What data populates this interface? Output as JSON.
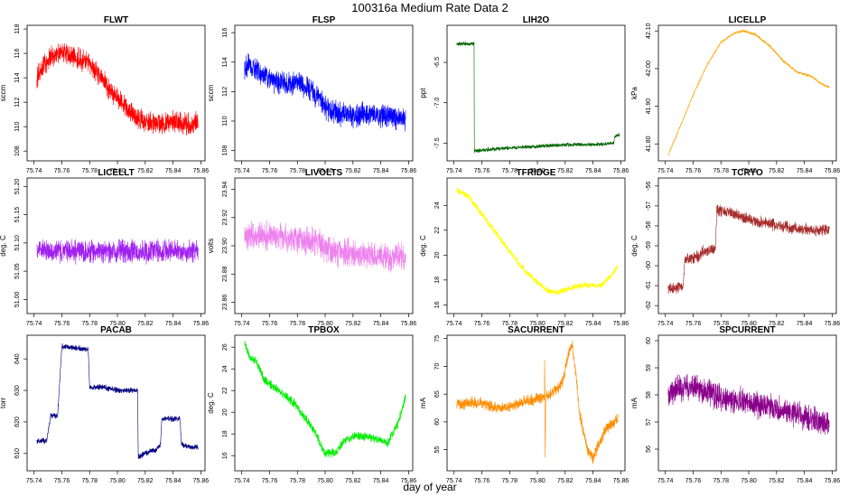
{
  "figure": {
    "title": "100316a   Medium Rate Data 2",
    "xlabel": "day of year"
  },
  "chart_data": [
    {
      "type": "line",
      "title": "FLWT",
      "ylabel": "sccm",
      "color": "#ff0000",
      "xlim": [
        75.735,
        75.863
      ],
      "ylim": [
        107.2,
        118.3
      ],
      "xticks": [
        75.74,
        75.76,
        75.78,
        75.8,
        75.82,
        75.84,
        75.86
      ],
      "yticks": [
        108,
        110,
        112,
        114,
        116,
        118
      ],
      "ytick_labels": [
        "108",
        "110",
        "112",
        "114",
        "116",
        "118"
      ],
      "series": [
        {
          "name": "FLWT",
          "x": [
            75.742,
            75.748,
            75.755,
            75.762,
            75.77,
            75.778,
            75.785,
            75.792,
            75.8,
            75.808,
            75.815,
            75.822,
            75.83,
            75.838,
            75.845,
            75.852,
            75.858
          ],
          "y": [
            114.0,
            115.3,
            115.8,
            116.0,
            115.6,
            115.3,
            114.5,
            113.4,
            112.4,
            111.3,
            110.7,
            110.3,
            110.3,
            110.4,
            110.3,
            110.1,
            110.4
          ],
          "noise": 1.1
        }
      ]
    },
    {
      "type": "line",
      "title": "FLSP",
      "ylabel": "sccm",
      "color": "#0000ff",
      "xlim": [
        75.735,
        75.863
      ],
      "ylim": [
        107.3,
        116.5
      ],
      "xticks": [
        75.74,
        75.76,
        75.78,
        75.8,
        75.82,
        75.84,
        75.86
      ],
      "yticks": [
        108,
        110,
        112,
        114,
        116
      ],
      "ytick_labels": [
        "108",
        "110",
        "112",
        "114",
        "116"
      ],
      "series": [
        {
          "name": "FLSP",
          "x": [
            75.742,
            75.75,
            75.758,
            75.765,
            75.772,
            75.78,
            75.788,
            75.795,
            75.8,
            75.808,
            75.815,
            75.822,
            75.83,
            75.838,
            75.845,
            75.852,
            75.858
          ],
          "y": [
            113.8,
            113.5,
            113.0,
            112.6,
            112.5,
            112.6,
            112.3,
            111.6,
            111.0,
            110.6,
            110.4,
            110.4,
            110.5,
            110.4,
            110.3,
            110.2,
            110.2
          ],
          "noise": 1.0
        }
      ]
    },
    {
      "type": "line",
      "title": "LIH2O",
      "ylabel": "ppt",
      "color": "#006400",
      "xlim": [
        75.735,
        75.863
      ],
      "ylim": [
        -7.72,
        -6.04
      ],
      "xticks": [
        75.74,
        75.76,
        75.78,
        75.8,
        75.82,
        75.84,
        75.86
      ],
      "yticks": [
        -7.5,
        -7.0,
        -6.5
      ],
      "ytick_labels": [
        "-7.5",
        "-7.0",
        "-6.5"
      ],
      "series": [
        {
          "name": "LIH2O",
          "x": [
            75.742,
            75.7545,
            75.7546,
            75.765,
            75.78,
            75.8,
            75.82,
            75.84,
            75.855,
            75.8556,
            75.859
          ],
          "y": [
            -6.27,
            -6.27,
            -7.6,
            -7.58,
            -7.56,
            -7.54,
            -7.52,
            -7.52,
            -7.5,
            -7.42,
            -7.4
          ],
          "noise": 0.03
        }
      ]
    },
    {
      "type": "line",
      "title": "LICELLP",
      "ylabel": "kPa",
      "color": "#ffa500",
      "xlim": [
        75.735,
        75.863
      ],
      "ylim": [
        41.755,
        42.115
      ],
      "xticks": [
        75.74,
        75.76,
        75.78,
        75.8,
        75.82,
        75.84,
        75.86
      ],
      "yticks": [
        41.8,
        41.9,
        42.0,
        42.1
      ],
      "ytick_labels": [
        "41.80",
        "41.90",
        "42.00",
        "42.10"
      ],
      "series": [
        {
          "name": "LICELLP",
          "x": [
            75.742,
            75.75,
            75.76,
            75.77,
            75.78,
            75.79,
            75.797,
            75.805,
            75.815,
            75.825,
            75.835,
            75.845,
            75.852,
            75.858
          ],
          "y": [
            41.77,
            41.84,
            41.93,
            42.01,
            42.07,
            42.095,
            42.1,
            42.09,
            42.06,
            42.02,
            41.99,
            41.98,
            41.96,
            41.95
          ],
          "noise": 0.004
        }
      ]
    },
    {
      "type": "line",
      "title": "LICELLT",
      "ylabel": "deg. C",
      "color": "#a020f0",
      "xlim": [
        75.735,
        75.863
      ],
      "ylim": [
        50.975,
        51.215
      ],
      "xticks": [
        75.74,
        75.76,
        75.78,
        75.8,
        75.82,
        75.84,
        75.86
      ],
      "yticks": [
        51.0,
        51.05,
        51.1,
        51.15,
        51.2
      ],
      "ytick_labels": [
        "51.00",
        "51.05",
        "51.10",
        "51.15",
        "51.20"
      ],
      "series": [
        {
          "name": "LICELLT",
          "x": [
            75.742,
            75.8,
            75.858
          ],
          "y": [
            51.085,
            51.085,
            51.085
          ],
          "noise": 0.024
        }
      ]
    },
    {
      "type": "line",
      "title": "LIVOLTS",
      "ylabel": "volts",
      "color": "#ee82ee",
      "xlim": [
        75.735,
        75.863
      ],
      "ylim": [
        23.852,
        23.948
      ],
      "xticks": [
        75.74,
        75.76,
        75.78,
        75.8,
        75.82,
        75.84,
        75.86
      ],
      "yticks": [
        23.86,
        23.88,
        23.9,
        23.92,
        23.94
      ],
      "ytick_labels": [
        "23.86",
        "23.88",
        "23.90",
        "23.92",
        "23.94"
      ],
      "series": [
        {
          "name": "LIVOLTS",
          "x": [
            75.742,
            75.76,
            75.78,
            75.795,
            75.802,
            75.815,
            75.83,
            75.845,
            75.858
          ],
          "y": [
            23.907,
            23.907,
            23.905,
            23.902,
            23.897,
            23.895,
            23.893,
            23.892,
            23.892
          ],
          "noise": 0.012
        }
      ]
    },
    {
      "type": "line",
      "title": "TFRIDGE",
      "ylabel": "deg. C",
      "color": "#ffff00",
      "xlim": [
        75.735,
        75.863
      ],
      "ylim": [
        15.3,
        26.2
      ],
      "xticks": [
        75.74,
        75.76,
        75.78,
        75.8,
        75.82,
        75.84,
        75.86
      ],
      "yticks": [
        16,
        18,
        20,
        22,
        24
      ],
      "ytick_labels": [
        "16",
        "18",
        "20",
        "22",
        "24"
      ],
      "series": [
        {
          "name": "TFRIDGE",
          "x": [
            75.742,
            75.75,
            75.76,
            75.77,
            75.78,
            75.79,
            75.8,
            75.808,
            75.815,
            75.825,
            75.835,
            75.845,
            75.852,
            75.858
          ],
          "y": [
            25.2,
            24.8,
            23.3,
            21.8,
            20.3,
            18.9,
            17.8,
            17.1,
            17.0,
            17.4,
            17.6,
            17.5,
            18.2,
            19.2
          ],
          "noise": 0.3
        }
      ]
    },
    {
      "type": "line",
      "title": "TCRYO",
      "ylabel": "deg. C",
      "color": "#a52a2a",
      "xlim": [
        75.735,
        75.863
      ],
      "ylim": [
        -62.4,
        -55.6
      ],
      "xticks": [
        75.74,
        75.76,
        75.78,
        75.8,
        75.82,
        75.84,
        75.86
      ],
      "yticks": [
        -62,
        -61,
        -60,
        -59,
        -58,
        -57,
        -56
      ],
      "ytick_labels": [
        "-62",
        "-61",
        "-60",
        "-59",
        "-58",
        "-57",
        "-56"
      ],
      "series": [
        {
          "name": "TCRYO",
          "x": [
            75.742,
            75.753,
            75.754,
            75.765,
            75.766,
            75.776,
            75.777,
            75.79,
            75.8,
            75.815,
            75.83,
            75.845,
            75.858
          ],
          "y": [
            -61.2,
            -61.0,
            -59.7,
            -59.5,
            -59.3,
            -59.2,
            -57.2,
            -57.4,
            -57.7,
            -57.9,
            -58.1,
            -58.2,
            -58.2
          ],
          "noise": 0.35
        }
      ]
    },
    {
      "type": "line",
      "title": "PACAB",
      "ylabel": "torr",
      "color": "#000080",
      "xlim": [
        75.735,
        75.863
      ],
      "ylim": [
        604.5,
        647.5
      ],
      "xticks": [
        75.74,
        75.76,
        75.78,
        75.8,
        75.82,
        75.84,
        75.86
      ],
      "yticks": [
        610,
        620,
        630,
        640
      ],
      "ytick_labels": [
        "610",
        "620",
        "630",
        "640"
      ],
      "series": [
        {
          "name": "PACAB",
          "x": [
            75.742,
            75.749,
            75.752,
            75.755,
            75.757,
            75.76,
            75.779,
            75.78,
            75.79,
            75.8,
            75.8145,
            75.815,
            75.825,
            75.828,
            75.831,
            75.832,
            75.845,
            75.846,
            75.852,
            75.858
          ],
          "y": [
            614,
            614,
            622,
            622,
            622,
            644,
            643,
            631,
            631,
            630,
            630,
            609,
            611,
            611,
            613,
            621,
            621,
            613,
            612,
            612
          ],
          "noise": 1.1
        }
      ]
    },
    {
      "type": "line",
      "title": "TPBOX",
      "ylabel": "deg. C",
      "color": "#00ee00",
      "xlim": [
        75.735,
        75.863
      ],
      "ylim": [
        14.6,
        27.1
      ],
      "xticks": [
        75.74,
        75.76,
        75.78,
        75.8,
        75.82,
        75.84,
        75.86
      ],
      "yticks": [
        16,
        18,
        20,
        22,
        24,
        26
      ],
      "ytick_labels": [
        "16",
        "18",
        "20",
        "22",
        "24",
        "26"
      ],
      "series": [
        {
          "name": "TPBOX",
          "x": [
            75.742,
            75.746,
            75.75,
            75.756,
            75.762,
            75.77,
            75.778,
            75.786,
            75.793,
            75.8,
            75.808,
            75.815,
            75.822,
            75.83,
            75.838,
            75.845,
            75.852,
            75.858
          ],
          "y": [
            26.4,
            25.0,
            24.8,
            23.0,
            22.4,
            21.7,
            20.8,
            19.4,
            18.1,
            16.2,
            16.3,
            17.6,
            17.8,
            17.7,
            17.5,
            17.2,
            18.8,
            21.5
          ],
          "noise": 0.5
        }
      ]
    },
    {
      "type": "line",
      "title": "SACURRENT",
      "ylabel": "mA",
      "color": "#ff8c00",
      "xlim": [
        75.735,
        75.863
      ],
      "ylim": [
        51.2,
        75.6
      ],
      "xticks": [
        75.74,
        75.76,
        75.78,
        75.8,
        75.82,
        75.84,
        75.86
      ],
      "yticks": [
        55,
        60,
        65,
        70,
        75
      ],
      "ytick_labels": [
        "55",
        "60",
        "65",
        "70",
        "75"
      ],
      "series": [
        {
          "name": "SACURRENT",
          "x": [
            75.742,
            75.752,
            75.76,
            75.77,
            75.78,
            75.79,
            75.8,
            75.805,
            75.8052,
            75.8056,
            75.806,
            75.812,
            75.818,
            75.822,
            75.825,
            75.828,
            75.83,
            75.836,
            75.84,
            75.845,
            75.85,
            75.858
          ],
          "y": [
            63,
            63.5,
            63.5,
            62.5,
            62.6,
            63.6,
            64.2,
            64.5,
            73,
            53,
            64.6,
            65.5,
            67,
            72,
            74,
            68,
            62,
            55,
            53.5,
            56.5,
            59,
            60.5
          ],
          "noise": 1.3
        }
      ]
    },
    {
      "type": "line",
      "title": "SPCURRENT",
      "ylabel": "mA",
      "color": "#8b008b",
      "xlim": [
        75.735,
        75.863
      ],
      "ylim": [
        55.2,
        60.2
      ],
      "xticks": [
        75.74,
        75.76,
        75.78,
        75.8,
        75.82,
        75.84,
        75.86
      ],
      "yticks": [
        56,
        57,
        58,
        59,
        60
      ],
      "ytick_labels": [
        "56",
        "57",
        "58",
        "59",
        "60"
      ],
      "series": [
        {
          "name": "SPCURRENT",
          "x": [
            75.742,
            75.75,
            75.76,
            75.77,
            75.78,
            75.79,
            75.8,
            75.81,
            75.82,
            75.83,
            75.84,
            75.85,
            75.858
          ],
          "y": [
            58.1,
            58.2,
            58.3,
            58.1,
            57.9,
            57.8,
            57.7,
            57.6,
            57.5,
            57.4,
            57.2,
            57.0,
            56.9
          ],
          "noise": 0.6
        }
      ]
    }
  ]
}
